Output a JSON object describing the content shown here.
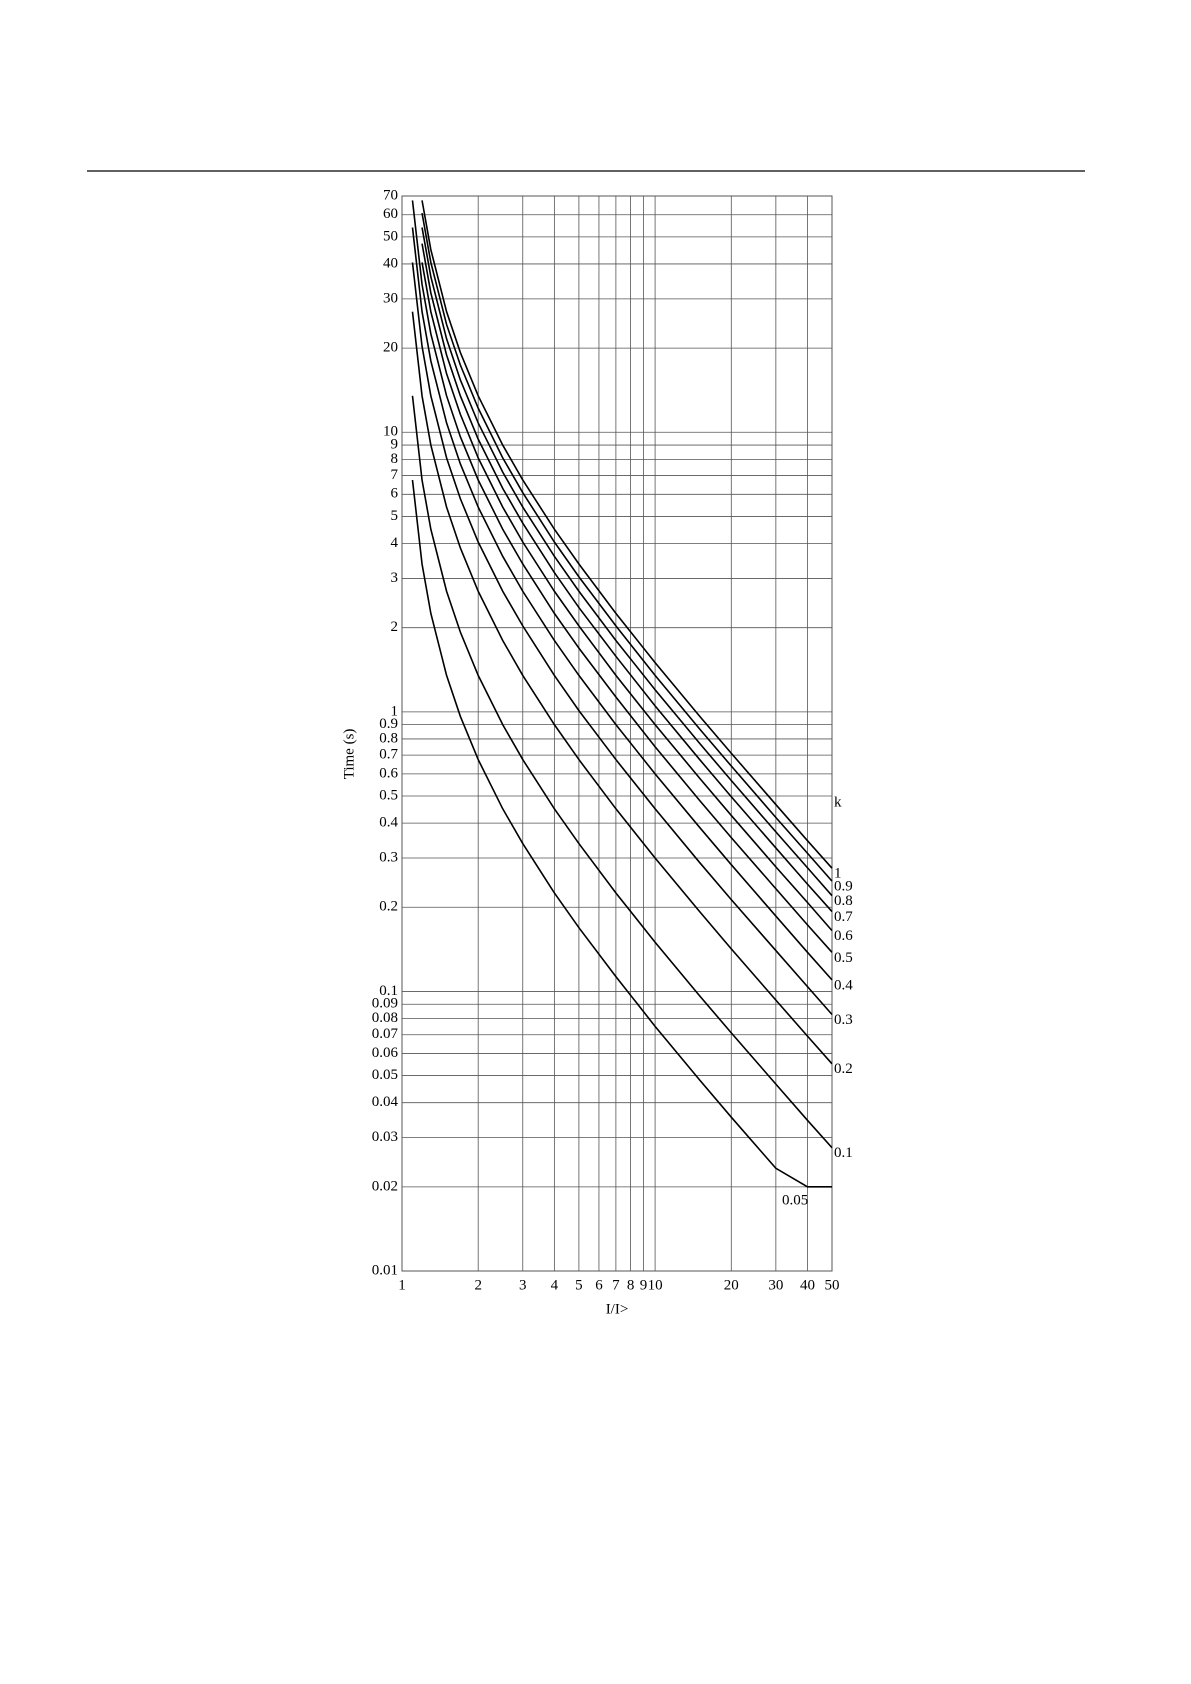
{
  "chart_data": {
    "type": "line",
    "x_label": "I/I>",
    "y_label": "Time (s)",
    "legend_title": "k",
    "log_x": true,
    "log_y": true,
    "grid": true,
    "color": "#000000",
    "xlim": [
      1,
      50
    ],
    "ylim": [
      0.01,
      70
    ],
    "xticks": [
      1,
      2,
      3,
      4,
      5,
      6,
      7,
      8,
      9,
      10,
      20,
      30,
      40,
      50
    ],
    "yticks": [
      0.01,
      0.02,
      0.03,
      0.04,
      0.05,
      0.06,
      0.07,
      0.08,
      0.09,
      0.1,
      0.2,
      0.3,
      0.4,
      0.5,
      0.6,
      0.7,
      0.8,
      0.9,
      1,
      2,
      3,
      4,
      5,
      6,
      7,
      8,
      9,
      10,
      20,
      30,
      40,
      50,
      60,
      70
    ],
    "x": [
      1.1,
      1.2,
      1.3,
      1.5,
      1.7,
      2,
      2.5,
      3,
      4,
      5,
      7,
      10,
      15,
      20,
      30,
      40,
      50
    ],
    "series": [
      {
        "name": "1",
        "values": [
          null,
          67.5,
          45,
          27,
          19.3,
          13.5,
          9,
          6.75,
          4.5,
          3.38,
          2.25,
          1.5,
          0.964,
          0.711,
          0.466,
          0.346,
          0.276
        ]
      },
      {
        "name": "0.9",
        "values": [
          null,
          60.8,
          40.5,
          24.3,
          17.4,
          12.2,
          8.1,
          6.08,
          4.05,
          3.04,
          2.03,
          1.35,
          0.868,
          0.64,
          0.419,
          0.312,
          0.248
        ]
      },
      {
        "name": "0.8",
        "values": [
          null,
          54,
          36,
          21.6,
          15.4,
          10.8,
          7.2,
          5.4,
          3.6,
          2.7,
          1.8,
          1.2,
          0.771,
          0.568,
          0.372,
          0.277,
          0.22
        ]
      },
      {
        "name": "0.7",
        "values": [
          null,
          47.3,
          31.5,
          18.9,
          13.5,
          9.45,
          6.3,
          4.73,
          3.15,
          2.36,
          1.58,
          1.05,
          0.675,
          0.497,
          0.326,
          0.242,
          0.193
        ]
      },
      {
        "name": "0.6",
        "values": [
          null,
          40.5,
          27,
          16.2,
          11.6,
          8.1,
          5.4,
          4.05,
          2.7,
          2.03,
          1.35,
          0.9,
          0.579,
          0.426,
          0.279,
          0.208,
          0.165
        ]
      },
      {
        "name": "0.5",
        "values": [
          67.5,
          33.8,
          22.5,
          13.5,
          9.64,
          6.75,
          4.5,
          3.38,
          2.25,
          1.69,
          1.13,
          0.75,
          0.482,
          0.355,
          0.233,
          0.173,
          0.138
        ]
      },
      {
        "name": "0.4",
        "values": [
          54,
          27,
          18,
          10.8,
          7.71,
          5.4,
          3.6,
          2.7,
          1.8,
          1.35,
          0.9,
          0.6,
          0.386,
          0.284,
          0.186,
          0.138,
          0.11
        ]
      },
      {
        "name": "0.3",
        "values": [
          40.5,
          20.3,
          13.5,
          8.1,
          5.79,
          4.05,
          2.7,
          2.03,
          1.35,
          1.01,
          0.675,
          0.45,
          0.289,
          0.213,
          0.14,
          0.104,
          0.0827
        ]
      },
      {
        "name": "0.2",
        "values": [
          27,
          13.5,
          9,
          5.4,
          3.86,
          2.7,
          1.8,
          1.35,
          0.9,
          0.675,
          0.45,
          0.3,
          0.193,
          0.142,
          0.0931,
          0.0692,
          0.0551
        ]
      },
      {
        "name": "0.1",
        "values": [
          13.5,
          6.75,
          4.5,
          2.7,
          1.93,
          1.35,
          0.9,
          0.675,
          0.45,
          0.338,
          0.225,
          0.15,
          0.0964,
          0.0711,
          0.0466,
          0.0346,
          0.0276
        ]
      },
      {
        "name": "0.05",
        "values": [
          6.75,
          3.38,
          2.25,
          1.35,
          0.964,
          0.675,
          0.45,
          0.338,
          0.225,
          0.169,
          0.113,
          0.075,
          0.0482,
          0.0355,
          0.0233,
          0.02,
          0.02
        ]
      }
    ]
  }
}
